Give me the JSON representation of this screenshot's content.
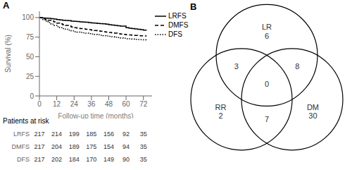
{
  "chart_data": [
    {
      "type": "line",
      "title": "A",
      "xlabel": "Follow-up time (months)",
      "ylabel": "Survival (%)",
      "xlim": [
        0,
        78
      ],
      "xticks": [
        0,
        12,
        24,
        36,
        48,
        60,
        72
      ],
      "ylim": [
        0,
        108
      ],
      "yticks": [
        0,
        25,
        50,
        75,
        100
      ],
      "grid": false,
      "legend": "upper right",
      "series": [
        {
          "name": "LRFS",
          "color": "black",
          "line_style": "solid",
          "x": [
            0,
            2,
            4,
            6,
            8,
            10,
            12,
            14,
            16,
            18,
            20,
            22,
            24,
            26,
            28,
            30,
            32,
            34,
            36,
            38,
            40,
            42,
            44,
            46,
            48,
            50,
            52,
            54,
            56,
            58,
            60,
            62,
            64,
            66,
            68,
            70,
            72,
            74
          ],
          "values": [
            100,
            99.5,
            99.2,
            99.0,
            98.5,
            98.0,
            97.5,
            97.0,
            96.5,
            96.2,
            96.0,
            95.5,
            95.2,
            95.0,
            94.5,
            94.2,
            94.0,
            93.5,
            93.2,
            93.0,
            92.5,
            92.2,
            92.0,
            91.5,
            91.0,
            90.5,
            90.0,
            89.5,
            89.2,
            89.0,
            87.0,
            86.5,
            86.0,
            85.5,
            85.0,
            84.5,
            84.0,
            83.5
          ]
        },
        {
          "name": "DMFS",
          "color": "black",
          "line_style": "dashed",
          "x": [
            0,
            2,
            4,
            6,
            8,
            10,
            12,
            14,
            16,
            18,
            20,
            22,
            24,
            26,
            28,
            30,
            32,
            34,
            36,
            38,
            40,
            42,
            44,
            46,
            48,
            50,
            52,
            54,
            56,
            58,
            60,
            62,
            64,
            66,
            68,
            70,
            72,
            74
          ],
          "values": [
            100,
            98.5,
            97.5,
            96.5,
            95.5,
            94.5,
            93.0,
            92.0,
            91.0,
            90.0,
            89.0,
            88.0,
            87.0,
            86.5,
            86.0,
            85.5,
            85.0,
            84.5,
            84.0,
            83.5,
            83.0,
            82.5,
            82.0,
            81.5,
            81.0,
            80.5,
            80.0,
            79.5,
            79.0,
            78.5,
            78.0,
            77.8,
            77.5,
            77.2,
            77.0,
            76.8,
            76.5,
            76.2
          ]
        },
        {
          "name": "DFS",
          "color": "black",
          "line_style": "dotted",
          "x": [
            0,
            2,
            4,
            6,
            8,
            10,
            12,
            14,
            16,
            18,
            20,
            22,
            24,
            26,
            28,
            30,
            32,
            34,
            36,
            38,
            40,
            42,
            44,
            46,
            48,
            50,
            52,
            54,
            56,
            58,
            60,
            62,
            64,
            66,
            68,
            70,
            72,
            74
          ],
          "values": [
            100,
            97.5,
            95.5,
            93.5,
            91.5,
            90.0,
            88.5,
            87.0,
            86.0,
            85.0,
            84.0,
            83.0,
            82.0,
            81.5,
            81.0,
            80.5,
            80.0,
            79.5,
            79.0,
            78.5,
            78.0,
            77.5,
            77.0,
            76.5,
            76.0,
            75.5,
            75.0,
            74.5,
            74.0,
            73.5,
            73.0,
            72.8,
            72.5,
            72.2,
            72.0,
            71.8,
            71.5,
            71.2
          ]
        }
      ],
      "at_risk_title": "Patients at risk",
      "at_risk": {
        "x": [
          0,
          12,
          24,
          36,
          48,
          60,
          72
        ],
        "rows": [
          {
            "name": "LRFS",
            "values": [
              217,
              214,
              199,
              185,
              156,
              92,
              35
            ]
          },
          {
            "name": "DMFS",
            "values": [
              217,
              204,
              189,
              175,
              154,
              94,
              35
            ]
          },
          {
            "name": "DFS",
            "values": [
              217,
              202,
              184,
              170,
              149,
              90,
              35
            ]
          }
        ]
      }
    },
    {
      "type": "venn",
      "title": "B",
      "color": "black",
      "sets": [
        "LR",
        "RR",
        "DM"
      ],
      "regions": [
        {
          "sets": [
            "LR"
          ],
          "value": 6
        },
        {
          "sets": [
            "RR"
          ],
          "value": 2
        },
        {
          "sets": [
            "DM"
          ],
          "value": 30
        },
        {
          "sets": [
            "LR",
            "RR"
          ],
          "value": 3
        },
        {
          "sets": [
            "LR",
            "DM"
          ],
          "value": 8
        },
        {
          "sets": [
            "RR",
            "DM"
          ],
          "value": 7
        },
        {
          "sets": [
            "LR",
            "RR",
            "DM"
          ],
          "value": 0
        }
      ]
    }
  ]
}
